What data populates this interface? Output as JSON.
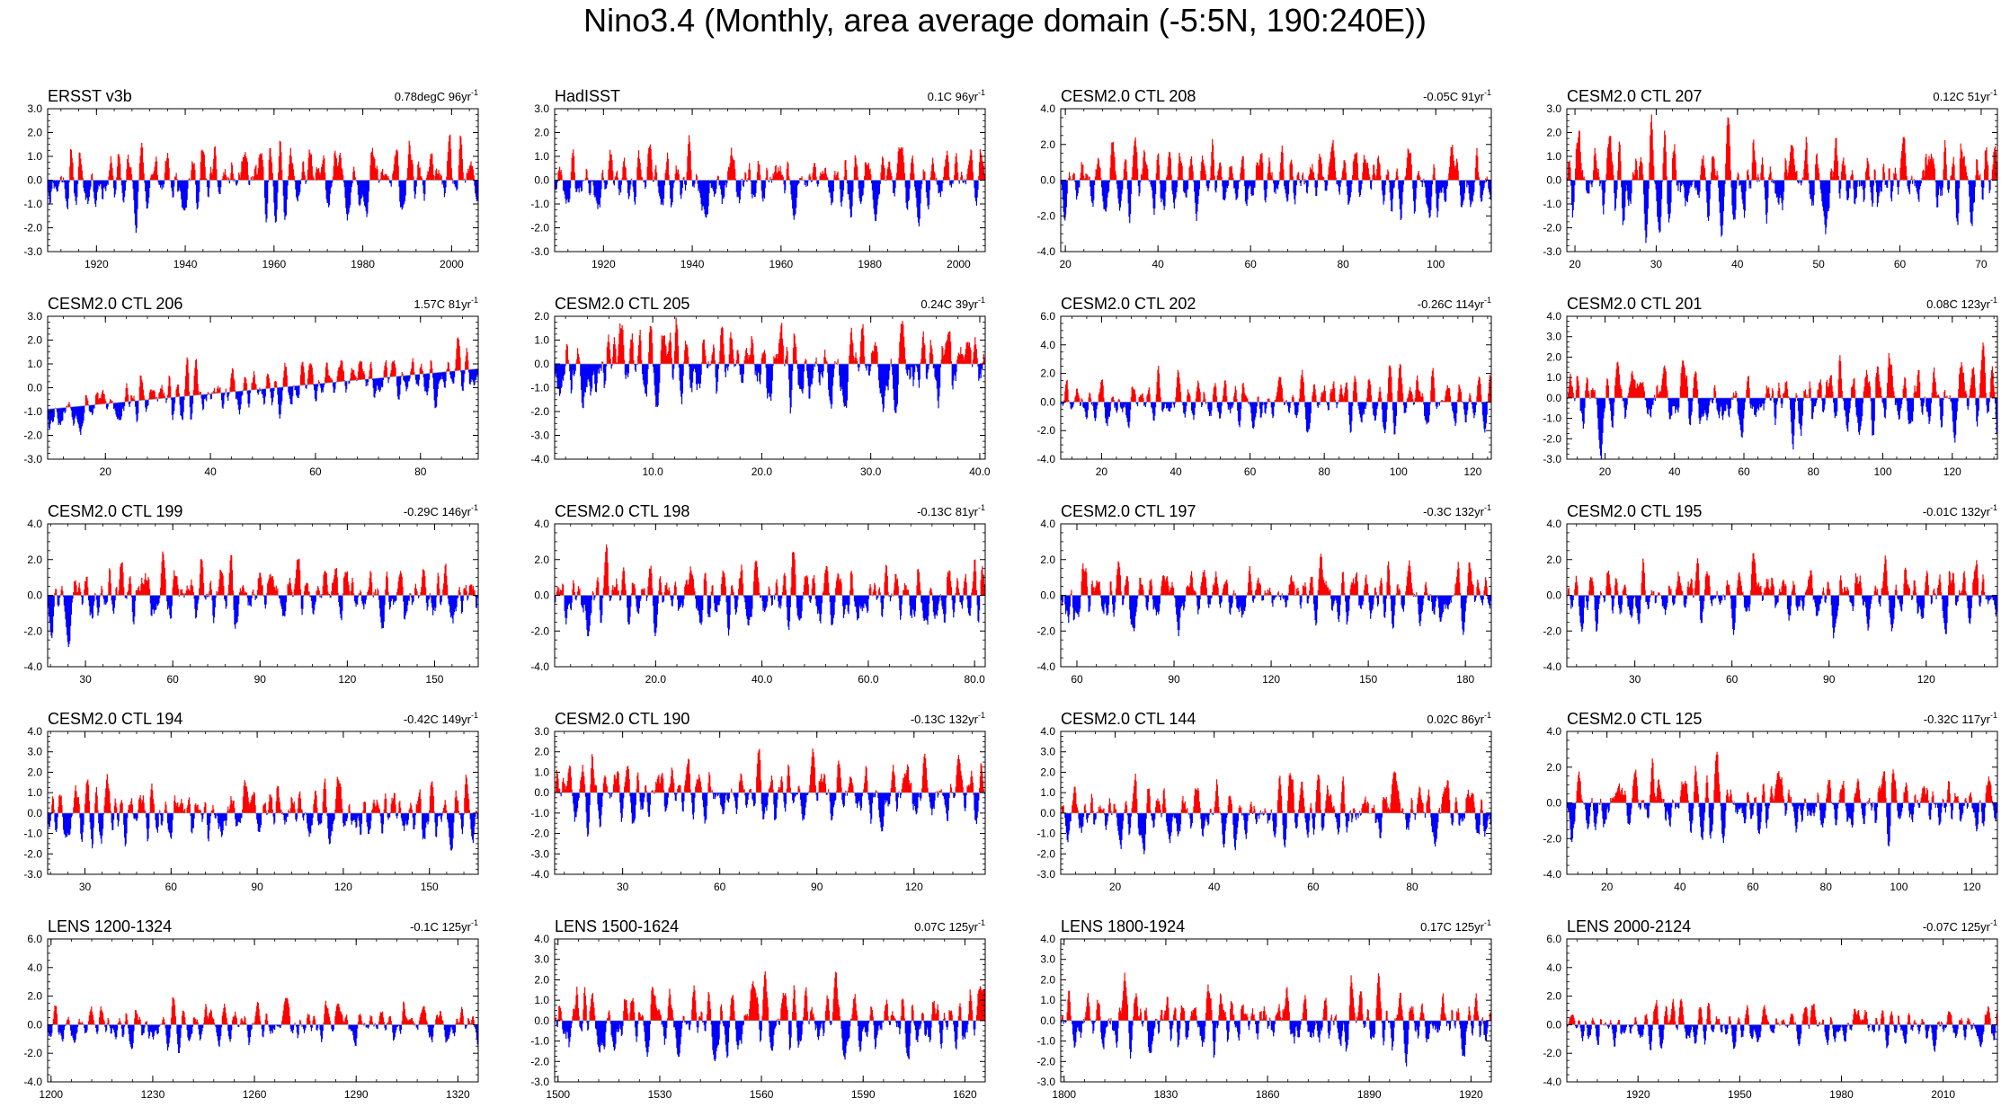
{
  "title": "Nino3.4 (Monthly, area average domain (-5:5N, 190:240E))",
  "colors": {
    "positive": "#ff0000",
    "negative": "#0000ff",
    "axis": "#000000",
    "baseline": "#999999"
  },
  "chart_data": [
    {
      "type": "area",
      "name": "ERSST v3b",
      "stat": "0.78degC 96yr",
      "yticks": [
        "3.0",
        "2.0",
        "1.0",
        "0.0",
        "-1.0",
        "-2.0",
        "-3.0"
      ],
      "ylim": [
        -3,
        3
      ],
      "xlim": [
        1909,
        2006
      ],
      "xtick_values": [
        1920,
        1940,
        1960,
        1980,
        2000
      ],
      "xticks": [
        "1920",
        "1940",
        "1960",
        "1980",
        "2000"
      ],
      "seed": 11,
      "amp": 1.2,
      "trend": [
        0,
        0
      ]
    },
    {
      "type": "area",
      "name": "HadISST",
      "stat": "0.1C 96yr",
      "yticks": [
        "3.0",
        "2.0",
        "1.0",
        "0.0",
        "-1.0",
        "-2.0",
        "-3.0"
      ],
      "ylim": [
        -3,
        3
      ],
      "xlim": [
        1909,
        2006
      ],
      "xtick_values": [
        1920,
        1940,
        1960,
        1980,
        2000
      ],
      "xticks": [
        "1920",
        "1940",
        "1960",
        "1980",
        "2000"
      ],
      "seed": 23,
      "amp": 1.2,
      "trend": [
        0,
        0
      ]
    },
    {
      "type": "area",
      "name": "CESM2.0 CTL 208",
      "stat": "-0.05C 91yr",
      "yticks": [
        "4.0",
        "2.0",
        "0.0",
        "-2.0",
        "-4.0"
      ],
      "ylim": [
        -4,
        4
      ],
      "xlim": [
        19,
        112
      ],
      "xtick_values": [
        20,
        40,
        60,
        80,
        100
      ],
      "xticks": [
        "20",
        "40",
        "60",
        "80",
        "100"
      ],
      "seed": 37,
      "amp": 1.6,
      "trend": [
        0,
        0
      ]
    },
    {
      "type": "area",
      "name": "CESM2.0 CTL 207",
      "stat": "0.12C 51yr",
      "yticks": [
        "3.0",
        "2.0",
        "1.0",
        "0.0",
        "-1.0",
        "-2.0",
        "-3.0"
      ],
      "ylim": [
        -3,
        3
      ],
      "xlim": [
        19,
        72
      ],
      "xtick_values": [
        20,
        30,
        40,
        50,
        60,
        70
      ],
      "xticks": [
        "20",
        "30",
        "40",
        "50",
        "60",
        "70"
      ],
      "seed": 41,
      "amp": 1.6,
      "trend": [
        0,
        0
      ]
    },
    {
      "type": "area",
      "name": "CESM2.0 CTL 206",
      "stat": "1.57C 81yr",
      "yticks": [
        "3.0",
        "2.0",
        "1.0",
        "0.0",
        "-1.0",
        "-2.0",
        "-3.0"
      ],
      "ylim": [
        -3,
        3
      ],
      "xlim": [
        9,
        91
      ],
      "xtick_values": [
        20,
        40,
        60,
        80
      ],
      "xticks": [
        "20",
        "40",
        "60",
        "80"
      ],
      "seed": 53,
      "amp": 0.9,
      "trend": [
        -0.9,
        0.8
      ]
    },
    {
      "type": "area",
      "name": "CESM2.0 CTL 205",
      "stat": "0.24C 39yr",
      "yticks": [
        "2.0",
        "1.0",
        "0.0",
        "-1.0",
        "-2.0",
        "-3.0",
        "-4.0"
      ],
      "ylim": [
        -4,
        2
      ],
      "xlim": [
        1,
        40.5
      ],
      "xtick_values": [
        10,
        20,
        30,
        40
      ],
      "xticks": [
        "10.0",
        "20.0",
        "30.0",
        "40.0"
      ],
      "seed": 67,
      "amp": 1.5,
      "trend": [
        0,
        0
      ]
    },
    {
      "type": "area",
      "name": "CESM2.0 CTL 202",
      "stat": "-0.26C 114yr",
      "yticks": [
        "6.0",
        "4.0",
        "2.0",
        "0.0",
        "-2.0",
        "-4.0"
      ],
      "ylim": [
        -4,
        6
      ],
      "xlim": [
        9,
        125
      ],
      "xtick_values": [
        20,
        40,
        60,
        80,
        100,
        120
      ],
      "xticks": [
        "20",
        "40",
        "60",
        "80",
        "100",
        "120"
      ],
      "seed": 71,
      "amp": 1.5,
      "trend": [
        0,
        0
      ]
    },
    {
      "type": "area",
      "name": "CESM2.0 CTL 201",
      "stat": "0.08C 123yr",
      "yticks": [
        "4.0",
        "3.0",
        "2.0",
        "1.0",
        "0.0",
        "-1.0",
        "-2.0",
        "-3.0"
      ],
      "ylim": [
        -3,
        4
      ],
      "xlim": [
        9,
        133
      ],
      "xtick_values": [
        20,
        40,
        60,
        80,
        100,
        120
      ],
      "xticks": [
        "20",
        "40",
        "60",
        "80",
        "100",
        "120"
      ],
      "seed": 83,
      "amp": 1.5,
      "trend": [
        0,
        0
      ]
    },
    {
      "type": "area",
      "name": "CESM2.0 CTL 199",
      "stat": "-0.29C 146yr",
      "yticks": [
        "4.0",
        "2.0",
        "0.0",
        "-2.0",
        "-4.0"
      ],
      "ylim": [
        -4,
        4
      ],
      "xlim": [
        17,
        165
      ],
      "xtick_values": [
        30,
        60,
        90,
        120,
        150
      ],
      "xticks": [
        "30",
        "60",
        "90",
        "120",
        "150"
      ],
      "seed": 97,
      "amp": 1.5,
      "trend": [
        0,
        0
      ]
    },
    {
      "type": "area",
      "name": "CESM2.0 CTL 198",
      "stat": "-0.13C 81yr",
      "yticks": [
        "4.0",
        "2.0",
        "0.0",
        "-2.0",
        "-4.0"
      ],
      "ylim": [
        -4,
        4
      ],
      "xlim": [
        1,
        82
      ],
      "xtick_values": [
        20,
        40,
        60,
        80
      ],
      "xticks": [
        "20.0",
        "40.0",
        "60.0",
        "80.0"
      ],
      "seed": 101,
      "amp": 1.6,
      "trend": [
        0,
        0
      ]
    },
    {
      "type": "area",
      "name": "CESM2.0 CTL 197",
      "stat": "-0.3C 132yr",
      "yticks": [
        "4.0",
        "2.0",
        "0.0",
        "-2.0",
        "-4.0"
      ],
      "ylim": [
        -4,
        4
      ],
      "xlim": [
        55,
        188
      ],
      "xtick_values": [
        60,
        90,
        120,
        150,
        180
      ],
      "xticks": [
        "60",
        "90",
        "120",
        "150",
        "180"
      ],
      "seed": 113,
      "amp": 1.5,
      "trend": [
        0,
        0
      ]
    },
    {
      "type": "area",
      "name": "CESM2.0 CTL 195",
      "stat": "-0.01C 132yr",
      "yticks": [
        "4.0",
        "2.0",
        "0.0",
        "-2.0",
        "-4.0"
      ],
      "ylim": [
        -4,
        4
      ],
      "xlim": [
        9,
        142
      ],
      "xtick_values": [
        30,
        60,
        90,
        120
      ],
      "xticks": [
        "30",
        "60",
        "90",
        "120"
      ],
      "seed": 127,
      "amp": 1.5,
      "trend": [
        0,
        0
      ]
    },
    {
      "type": "area",
      "name": "CESM2.0 CTL 194",
      "stat": "-0.42C 149yr",
      "yticks": [
        "4.0",
        "3.0",
        "2.0",
        "1.0",
        "0.0",
        "-1.0",
        "-2.0",
        "-3.0"
      ],
      "ylim": [
        -3,
        4
      ],
      "xlim": [
        17,
        167
      ],
      "xtick_values": [
        30,
        60,
        90,
        120,
        150
      ],
      "xticks": [
        "30",
        "60",
        "90",
        "120",
        "150"
      ],
      "seed": 131,
      "amp": 1.3,
      "trend": [
        0,
        0
      ]
    },
    {
      "type": "area",
      "name": "CESM2.0 CTL 190",
      "stat": "-0.13C 132yr",
      "yticks": [
        "3.0",
        "2.0",
        "1.0",
        "0.0",
        "-1.0",
        "-2.0",
        "-3.0",
        "-4.0"
      ],
      "ylim": [
        -4,
        3
      ],
      "xlim": [
        9,
        142
      ],
      "xtick_values": [
        30,
        60,
        90,
        120
      ],
      "xticks": [
        "30",
        "60",
        "90",
        "120"
      ],
      "seed": 139,
      "amp": 1.3,
      "trend": [
        0,
        0
      ]
    },
    {
      "type": "area",
      "name": "CESM2.0 CTL 144",
      "stat": "0.02C 86yr",
      "yticks": [
        "4.0",
        "3.0",
        "2.0",
        "1.0",
        "0.0",
        "-1.0",
        "-2.0",
        "-3.0"
      ],
      "ylim": [
        -3,
        4
      ],
      "xlim": [
        9,
        96
      ],
      "xtick_values": [
        20,
        40,
        60,
        80
      ],
      "xticks": [
        "20",
        "40",
        "60",
        "80"
      ],
      "seed": 149,
      "amp": 1.3,
      "trend": [
        0,
        0
      ]
    },
    {
      "type": "area",
      "name": "CESM2.0 CTL 125",
      "stat": "-0.32C 117yr",
      "yticks": [
        "4.0",
        "2.0",
        "0.0",
        "-2.0",
        "-4.0"
      ],
      "ylim": [
        -4,
        4
      ],
      "xlim": [
        9,
        127
      ],
      "xtick_values": [
        20,
        40,
        60,
        80,
        100,
        120
      ],
      "xticks": [
        "20",
        "40",
        "60",
        "80",
        "100",
        "120"
      ],
      "seed": 157,
      "amp": 1.5,
      "trend": [
        0,
        0
      ]
    },
    {
      "type": "area",
      "name": "LENS 1200-1324",
      "stat": "-0.1C 125yr",
      "yticks": [
        "6.0",
        "4.0",
        "2.0",
        "0.0",
        "-2.0",
        "-4.0"
      ],
      "ylim": [
        -4,
        6
      ],
      "xlim": [
        1199,
        1326
      ],
      "xtick_values": [
        1200,
        1230,
        1260,
        1290,
        1320
      ],
      "xticks": [
        "1200",
        "1230",
        "1260",
        "1290",
        "1320"
      ],
      "seed": 163,
      "amp": 1.2,
      "trend": [
        0,
        0
      ]
    },
    {
      "type": "area",
      "name": "LENS 1500-1624",
      "stat": "0.07C 125yr",
      "yticks": [
        "4.0",
        "3.0",
        "2.0",
        "1.0",
        "0.0",
        "-1.0",
        "-2.0",
        "-3.0"
      ],
      "ylim": [
        -3,
        4
      ],
      "xlim": [
        1499,
        1626
      ],
      "xtick_values": [
        1500,
        1530,
        1560,
        1590,
        1620
      ],
      "xticks": [
        "1500",
        "1530",
        "1560",
        "1590",
        "1620"
      ],
      "seed": 173,
      "amp": 1.4,
      "trend": [
        0,
        0
      ]
    },
    {
      "type": "area",
      "name": "LENS 1800-1924",
      "stat": "0.17C 125yr",
      "yticks": [
        "4.0",
        "3.0",
        "2.0",
        "1.0",
        "0.0",
        "-1.0",
        "-2.0",
        "-3.0"
      ],
      "ylim": [
        -3,
        4
      ],
      "xlim": [
        1799,
        1926
      ],
      "xtick_values": [
        1800,
        1830,
        1860,
        1890,
        1920
      ],
      "xticks": [
        "1800",
        "1830",
        "1860",
        "1890",
        "1920"
      ],
      "seed": 181,
      "amp": 1.4,
      "trend": [
        0,
        0
      ]
    },
    {
      "type": "area",
      "name": "LENS 2000-2124",
      "stat": "-0.07C 125yr",
      "yticks": [
        "6.0",
        "4.0",
        "2.0",
        "0.0",
        "-2.0",
        "-4.0"
      ],
      "ylim": [
        -4,
        6
      ],
      "xlim": [
        1899,
        2026
      ],
      "xtick_values": [
        1920,
        1950,
        1980,
        2010
      ],
      "xticks": [
        "1920",
        "1950",
        "1980",
        "2010"
      ],
      "seed": 191,
      "amp": 1.2,
      "trend": [
        0,
        0
      ]
    }
  ]
}
